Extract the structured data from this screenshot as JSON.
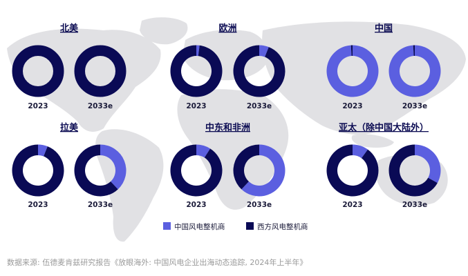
{
  "chart_data": {
    "type": "pie",
    "colors": {
      "chinese": "#5b5fe0",
      "western": "#0a0a55",
      "map": "#e1e1e4"
    },
    "legend": [
      {
        "key": "chinese",
        "label": "中国风电整机商"
      },
      {
        "key": "western",
        "label": "西方风电整机商"
      }
    ],
    "legend_position": "bottom",
    "source": "数据来源: 伍德麦肯兹研究报告《放眼海外: 中国风电企业出海动态追踪, 2024年上半年》",
    "regions": [
      {
        "name": "北美",
        "charts": [
          {
            "label": "2023",
            "chinese": 0
          },
          {
            "label": "2033e",
            "chinese": 0
          }
        ]
      },
      {
        "name": "欧洲",
        "charts": [
          {
            "label": "2023",
            "chinese": 2
          },
          {
            "label": "2033e",
            "chinese": 6
          }
        ]
      },
      {
        "name": "中国",
        "charts": [
          {
            "label": "2023",
            "chinese": 99
          },
          {
            "label": "2033e",
            "chinese": 99
          }
        ]
      },
      {
        "name": "拉美",
        "charts": [
          {
            "label": "2023",
            "chinese": 6
          },
          {
            "label": "2033e",
            "chinese": 38
          }
        ]
      },
      {
        "name": "中东和非洲",
        "charts": [
          {
            "label": "2023",
            "chinese": 9
          },
          {
            "label": "2033e",
            "chinese": 62
          }
        ]
      },
      {
        "name": "亚太（除中国大陆外）",
        "charts": [
          {
            "label": "2023",
            "chinese": 10
          },
          {
            "label": "2033e",
            "chinese": 33
          }
        ]
      }
    ]
  }
}
